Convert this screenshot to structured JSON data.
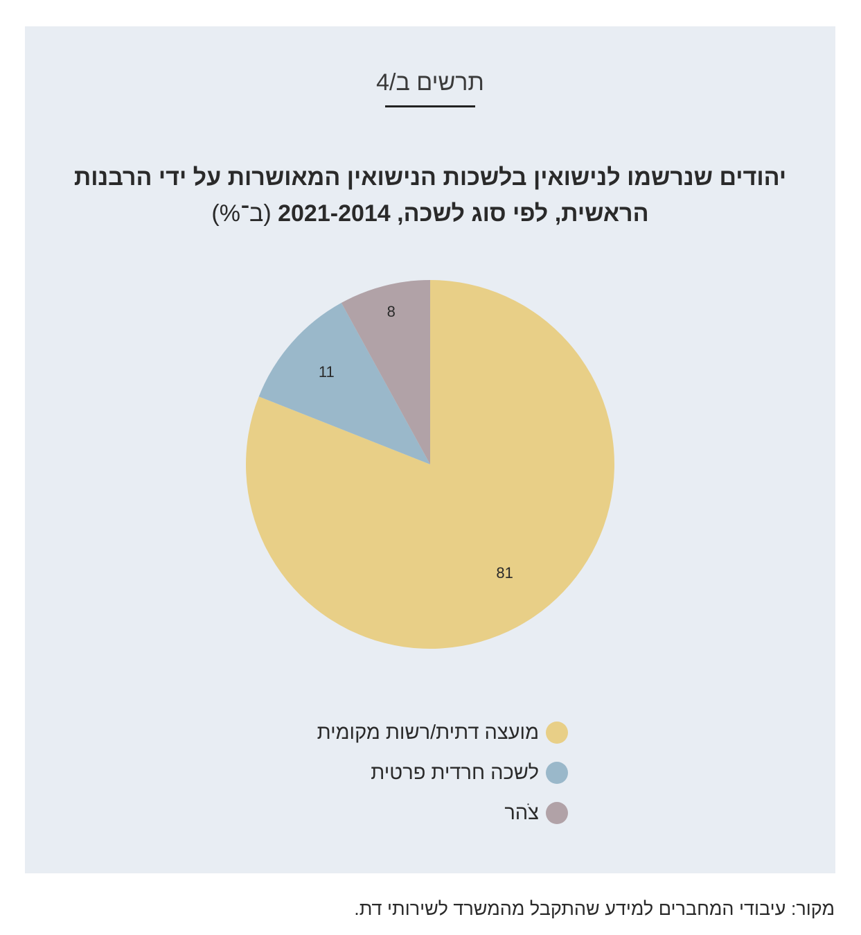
{
  "figure_label": "תרשים ב/4",
  "colors": {
    "panel_bg": "#e8edf3",
    "local_council": "#e8cf87",
    "private_haredi": "#9ab8ca",
    "tzohar": "#b1a2a7"
  },
  "chart_data": {
    "type": "pie",
    "title": "יהודים שנרשמו לנישואין בלשכות הנישואין המאושרות על ידי הרבנות הראשית, לפי סוג לשכה, 2021-2014",
    "title_unit": "(ב־%)",
    "slices": [
      {
        "label": "מועצה דתית/רשות מקומית",
        "value": 81,
        "display": "81",
        "color": "#e8cf87"
      },
      {
        "label": "לשכה חרדית פרטית",
        "value": 11,
        "display": "11",
        "color": "#9ab8ca"
      },
      {
        "label": "צֹהר",
        "value": 8,
        "display": "8",
        "color": "#b1a2a7"
      }
    ],
    "legend_position": "bottom"
  },
  "source": "מקור: עיבודי המחברים למידע שהתקבל מהמשרד לשירותי דת."
}
